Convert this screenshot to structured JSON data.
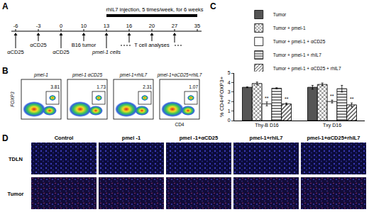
{
  "panel_a": {
    "label": "A",
    "days": [
      -6,
      -3,
      0,
      10,
      13,
      16,
      20,
      27,
      35
    ],
    "treatment": {
      "label": "rhIL7 injection, 5 times/week, for 6 weeks",
      "from": 13,
      "to": 35
    },
    "events": [
      {
        "day": -6,
        "label": "αCD25"
      },
      {
        "day": -3,
        "label": "αCD25"
      },
      {
        "day": 0,
        "label": "αCD25"
      },
      {
        "day": 10,
        "label": "B16 tumor"
      },
      {
        "day": 13,
        "label": "pmel-1 cells"
      }
    ],
    "analyses": {
      "label": "T cell analyses",
      "days": [
        16,
        20,
        27
      ]
    }
  },
  "panel_b": {
    "label": "B",
    "y_label": "FOXP3",
    "x_label": "CD4",
    "plots": [
      {
        "title": "pmel-1",
        "value": "3.81"
      },
      {
        "title": "pmel-1 αCD25",
        "value": "1.73"
      },
      {
        "title": "pmel-1+rhIL7",
        "value": "2.31"
      },
      {
        "title": "pmel-1+αCD25+rhIL7",
        "value": "1.07"
      }
    ]
  },
  "chart_data": {
    "type": "bar",
    "label": "C",
    "categories": [
      "Thy-B D16",
      "Txy D16"
    ],
    "y_label": "% CD4+FOXP3+",
    "ylim": [
      0,
      5
    ],
    "yticks": [
      0,
      1,
      2,
      3,
      4,
      5
    ],
    "series": [
      {
        "name": "Tumor",
        "color": "#555555",
        "marker": "solid",
        "values": [
          3.5,
          3.5
        ],
        "errors": [
          0.05,
          0.2
        ]
      },
      {
        "name": "Tumor + pmel-1",
        "color": "#ffffff",
        "marker": "crosshatch",
        "values": [
          3.9,
          3.8
        ],
        "errors": [
          0.15,
          0.15
        ]
      },
      {
        "name": "Tumor + pmel-1 + αCD25",
        "color": "#ffffff",
        "marker": "solid",
        "values": [
          1.75,
          2.0
        ],
        "errors": [
          0.2,
          0.15
        ],
        "significance": [
          "**",
          "**"
        ]
      },
      {
        "name": "Tumor + pmel-1 + rhIL7",
        "color": "#ffffff",
        "marker": "horizontal",
        "values": [
          3.4,
          3.35
        ],
        "errors": [
          0.05,
          0.35
        ]
      },
      {
        "name": "Tumor + pmel-1 + αCD25 + rhIL7",
        "color": "#ffffff",
        "marker": "diagonal",
        "values": [
          1.75,
          1.65
        ],
        "errors": [
          0.1,
          0.2
        ],
        "significance": [
          "**",
          "**"
        ]
      }
    ],
    "legend": "top"
  },
  "panel_d": {
    "label": "D",
    "columns": [
      "Control",
      "pmel -1",
      "pmel -1+αCD25",
      "pmel-1+rhIL7",
      "pmel-1+αCD25+rhIL7"
    ],
    "rows": [
      "TDLN",
      "Tumor"
    ]
  }
}
